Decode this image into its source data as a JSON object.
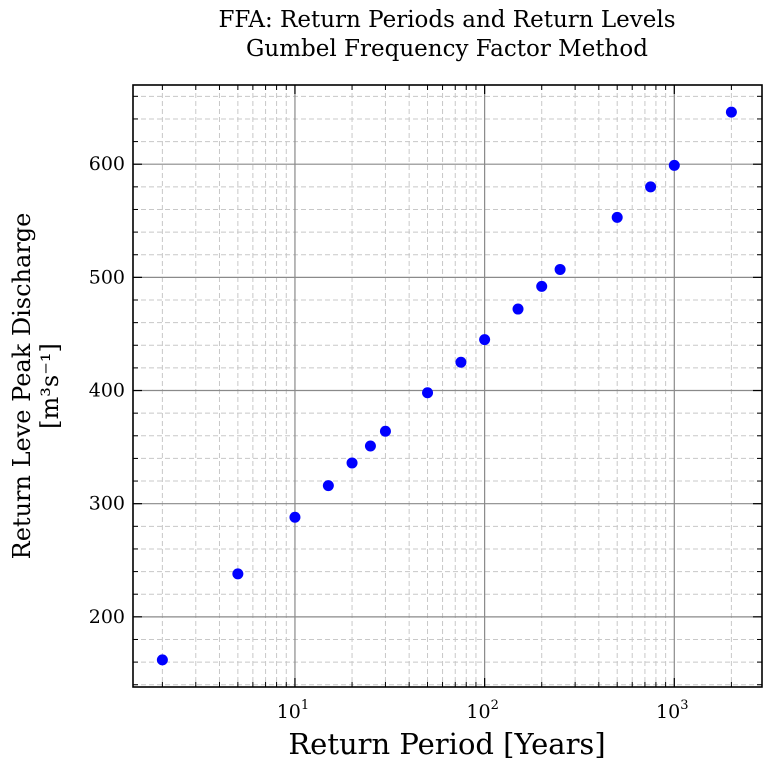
{
  "chart_data": {
    "type": "scatter",
    "title": "FFA: Return Periods and Return Levels",
    "subtitle": "Gumbel Frequency Factor Method",
    "xlabel": "Return Period [Years]",
    "ylabel": "Return Leve Peak Discharge",
    "ylabel_unit": "[m³s⁻¹]",
    "x_scale": "log",
    "xlim": [
      1.4,
      2900
    ],
    "ylim": [
      138,
      670
    ],
    "x_ticks": [
      {
        "value": 10,
        "base": "10",
        "exp": "1"
      },
      {
        "value": 100,
        "base": "10",
        "exp": "2"
      },
      {
        "value": 1000,
        "base": "10",
        "exp": "3"
      }
    ],
    "y_ticks": [
      200,
      300,
      400,
      500,
      600
    ],
    "y_tick_labels": [
      "200",
      "300",
      "400",
      "500",
      "600"
    ],
    "grid": true,
    "legend": "none",
    "marker_color": "#0000ff",
    "x": [
      2,
      5,
      10,
      15,
      20,
      25,
      30,
      50,
      75,
      100,
      150,
      200,
      250,
      500,
      750,
      1000,
      2000
    ],
    "y": [
      162,
      238,
      288,
      316,
      336,
      351,
      364,
      398,
      425,
      445,
      472,
      492,
      507,
      553,
      580,
      599,
      646
    ]
  }
}
